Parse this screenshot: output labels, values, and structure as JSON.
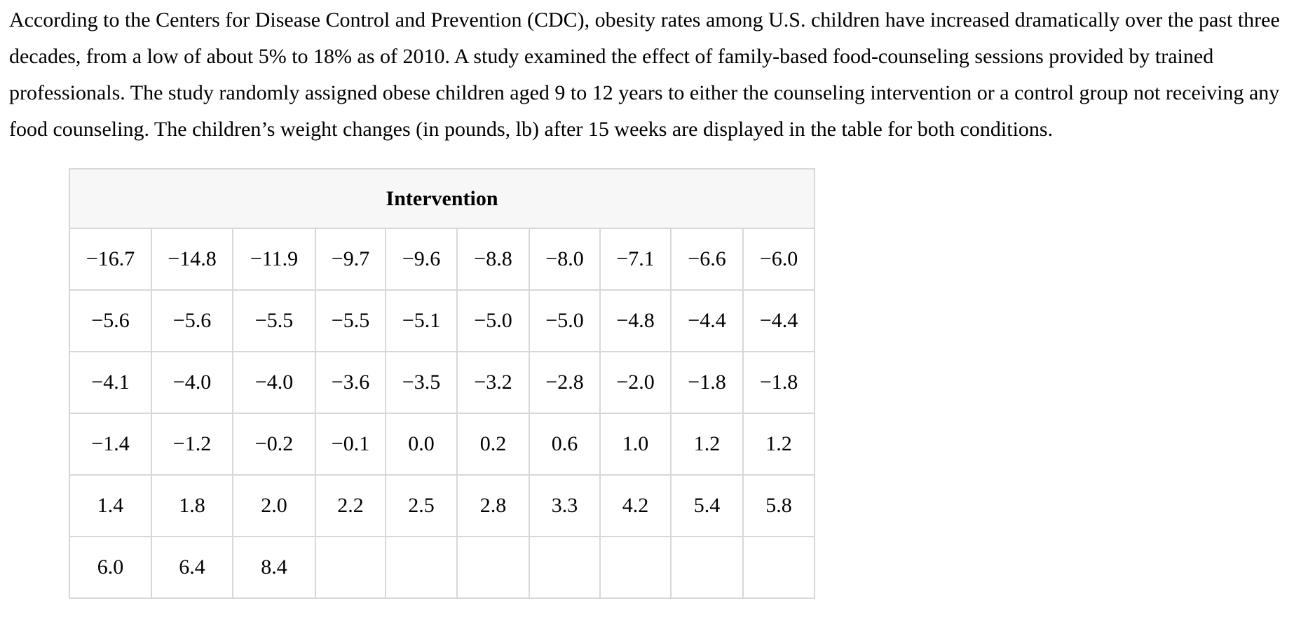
{
  "problem": {
    "text": "According to the Centers for Disease Control and Prevention (CDC), obesity rates among U.S. children have increased dramatically over the past three decades, from a low of about 5% to 18% as of 2010. A study examined the effect of family-based food-counseling sessions provided by trained professionals. The study randomly assigned obese children aged 9 to 12 years to either the counseling intervention or a control group not receiving any food counseling. The children’s weight changes (in pounds, lb) after 15 weeks are displayed in the table for both conditions."
  },
  "table": {
    "title": "Intervention",
    "columns": 10,
    "rows": [
      [
        "−16.7",
        "−14.8",
        "−11.9",
        "−9.7",
        "−9.6",
        "−8.8",
        "−8.0",
        "−7.1",
        "−6.6",
        "−6.0"
      ],
      [
        "−5.6",
        "−5.6",
        "−5.5",
        "−5.5",
        "−5.1",
        "−5.0",
        "−5.0",
        "−4.8",
        "−4.4",
        "−4.4"
      ],
      [
        "−4.1",
        "−4.0",
        "−4.0",
        "−3.6",
        "−3.5",
        "−3.2",
        "−2.8",
        "−2.0",
        "−1.8",
        "−1.8"
      ],
      [
        "−1.4",
        "−1.2",
        "−0.2",
        "−0.1",
        "0.0",
        "0.2",
        "0.6",
        "1.0",
        "1.2",
        "1.2"
      ],
      [
        "1.4",
        "1.8",
        "2.0",
        "2.2",
        "2.5",
        "2.8",
        "3.3",
        "4.2",
        "5.4",
        "5.8"
      ],
      [
        "6.0",
        "6.4",
        "8.4",
        "",
        "",
        "",
        "",
        "",
        "",
        ""
      ]
    ]
  },
  "colors": {
    "text": "#000000",
    "header_bg": "#f7f7f7",
    "border": "#d8d8d8",
    "page_bg": "#ffffff"
  }
}
